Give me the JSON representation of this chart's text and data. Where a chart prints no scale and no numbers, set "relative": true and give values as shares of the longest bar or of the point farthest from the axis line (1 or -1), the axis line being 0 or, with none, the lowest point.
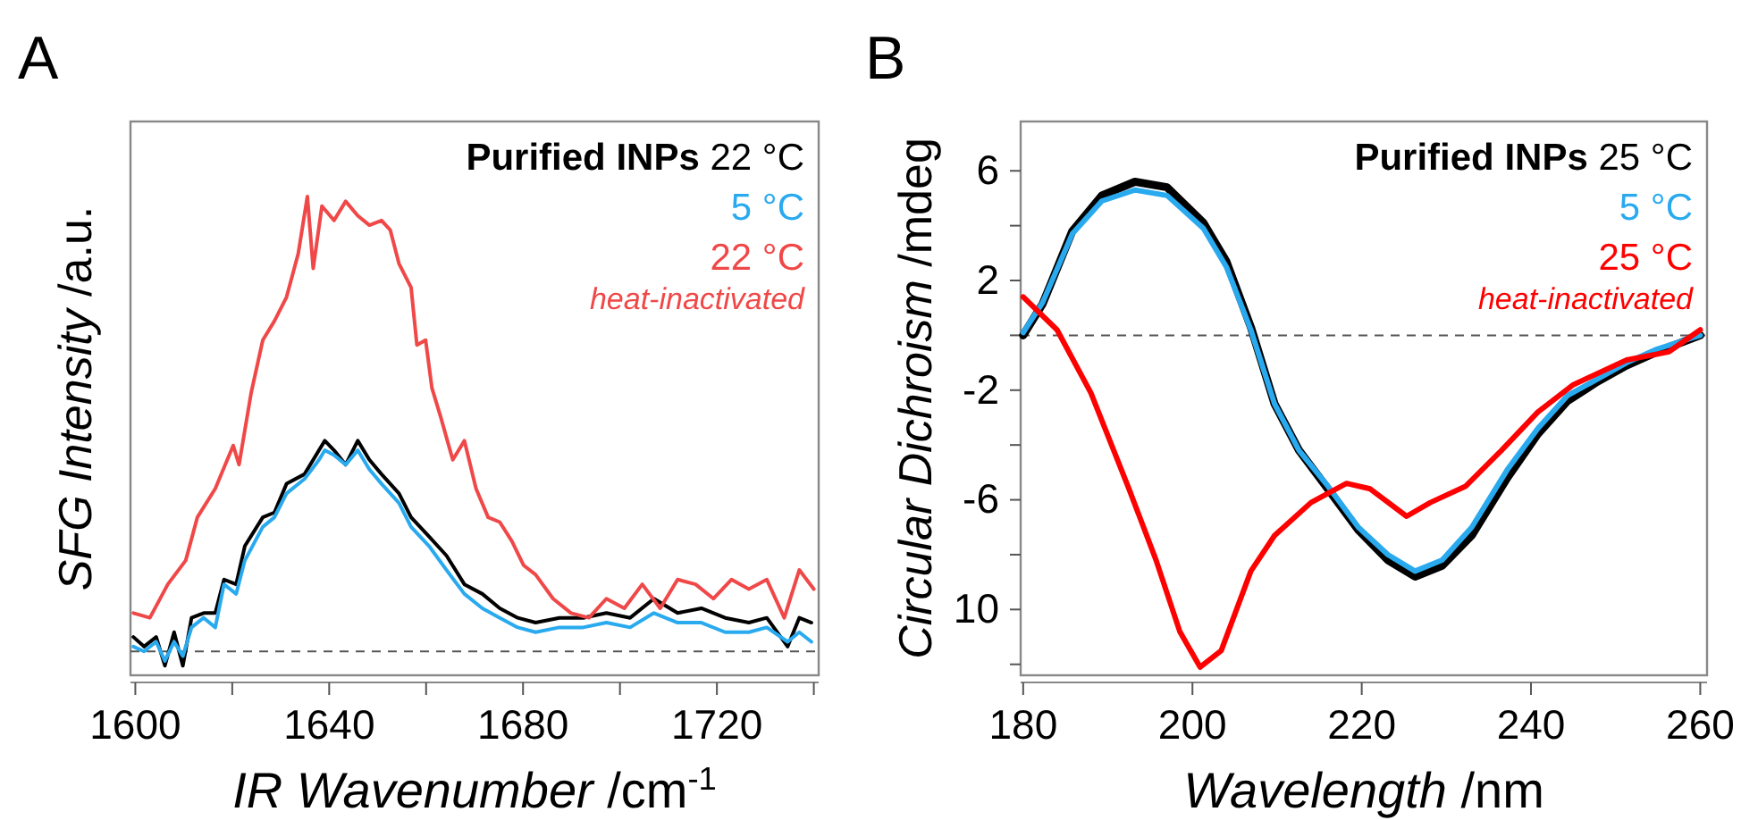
{
  "chart_data": [
    {
      "type": "line",
      "title": "A",
      "xlabel": "IR Wavenumber /cm$^{-1}$",
      "ylabel": "SFG Intensity /a.u.",
      "relative": true,
      "legend": "top right",
      "legend_title": "Purified INPs",
      "annotations": [
        "heat-inactivated"
      ],
      "xlim": [
        1599,
        1741
      ],
      "xticks": [
        1600,
        {
          "value": 1620,
          "label": null
        },
        1640,
        {
          "value": 1660,
          "label": null
        },
        1680,
        {
          "value": 1700,
          "label": null
        },
        1720,
        {
          "value": 1740,
          "label": null
        }
      ],
      "ref_lines": [
        {
          "axis": "y",
          "value": 0.05,
          "label": null,
          "color": "#555555",
          "line_style": "dashed"
        }
      ],
      "series": [
        {
          "name": "22 °C",
          "color": "#000000",
          "x": [
            1599.6,
            1601.8,
            1604.3,
            1606.1,
            1608,
            1609.8,
            1611.6,
            1614.1,
            1616.5,
            1618.3,
            1620.8,
            1622.6,
            1626.3,
            1628.7,
            1631.2,
            1634.9,
            1637.9,
            1639.1,
            1641,
            1643.4,
            1645.9,
            1648.3,
            1650.8,
            1654.4,
            1656.9,
            1660.6,
            1664.2,
            1667.9,
            1671.6,
            1675.2,
            1678.9,
            1682.6,
            1687.5,
            1692.4,
            1697.2,
            1702.1,
            1707,
            1711.9,
            1716.8,
            1721.7,
            1726.6,
            1730.3,
            1734.6,
            1737,
            1739.5
          ],
          "values": [
            0.08,
            0.06,
            0.08,
            0.02,
            0.09,
            0.02,
            0.12,
            0.13,
            0.13,
            0.2,
            0.19,
            0.27,
            0.33,
            0.34,
            0.4,
            0.42,
            0.47,
            0.49,
            0.47,
            0.44,
            0.49,
            0.45,
            0.42,
            0.38,
            0.33,
            0.29,
            0.25,
            0.19,
            0.17,
            0.14,
            0.12,
            0.11,
            0.12,
            0.12,
            0.13,
            0.12,
            0.16,
            0.13,
            0.14,
            0.12,
            0.11,
            0.12,
            0.06,
            0.12,
            0.11
          ]
        },
        {
          "name": "5 °C",
          "color": "#29aaef",
          "x": [
            1599.6,
            1601.8,
            1604.3,
            1606.1,
            1608,
            1609.8,
            1611.6,
            1614.1,
            1616.5,
            1618.3,
            1620.8,
            1622.6,
            1626.3,
            1628.7,
            1631.2,
            1634.9,
            1637.9,
            1639.1,
            1641,
            1643.4,
            1645.9,
            1648.3,
            1650.8,
            1654.4,
            1656.9,
            1660.6,
            1664.2,
            1667.9,
            1671.6,
            1675.2,
            1678.9,
            1682.6,
            1687.5,
            1692.4,
            1697.2,
            1702.1,
            1707,
            1711.9,
            1716.8,
            1721.7,
            1726.6,
            1730.3,
            1734.6,
            1737,
            1739.5
          ],
          "values": [
            0.06,
            0.05,
            0.07,
            0.03,
            0.07,
            0.04,
            0.1,
            0.12,
            0.1,
            0.19,
            0.17,
            0.24,
            0.31,
            0.33,
            0.38,
            0.41,
            0.45,
            0.47,
            0.46,
            0.44,
            0.47,
            0.43,
            0.4,
            0.36,
            0.31,
            0.27,
            0.22,
            0.17,
            0.14,
            0.12,
            0.1,
            0.09,
            0.1,
            0.1,
            0.11,
            0.1,
            0.13,
            0.11,
            0.11,
            0.09,
            0.09,
            0.1,
            0.07,
            0.09,
            0.07
          ]
        },
        {
          "name": "22 °C",
          "color": "#f04848",
          "x": [
            1599.6,
            1603,
            1606.7,
            1610.4,
            1612.8,
            1616.5,
            1620.2,
            1621.4,
            1623.9,
            1626.3,
            1628.7,
            1631.2,
            1633.6,
            1635.5,
            1636.7,
            1638.5,
            1641,
            1643.4,
            1645.9,
            1648.3,
            1650.8,
            1652.6,
            1654.4,
            1656.9,
            1658.1,
            1659.9,
            1661.2,
            1663,
            1665.5,
            1667.9,
            1670.3,
            1672.8,
            1675.2,
            1677.7,
            1680.1,
            1682.6,
            1686.2,
            1689.9,
            1693.6,
            1697.2,
            1700.9,
            1704.6,
            1708.3,
            1711.9,
            1715.6,
            1719.3,
            1723,
            1726.6,
            1730.3,
            1733.9,
            1737,
            1740
          ],
          "values": [
            0.13,
            0.12,
            0.19,
            0.24,
            0.33,
            0.39,
            0.48,
            0.44,
            0.59,
            0.7,
            0.74,
            0.79,
            0.88,
            1,
            0.85,
            0.98,
            0.95,
            0.99,
            0.96,
            0.94,
            0.95,
            0.93,
            0.86,
            0.81,
            0.69,
            0.7,
            0.6,
            0.54,
            0.45,
            0.49,
            0.39,
            0.33,
            0.32,
            0.28,
            0.23,
            0.21,
            0.16,
            0.13,
            0.12,
            0.16,
            0.14,
            0.19,
            0.14,
            0.2,
            0.19,
            0.16,
            0.2,
            0.18,
            0.2,
            0.12,
            0.22,
            0.18
          ]
        }
      ]
    },
    {
      "type": "line",
      "title": "B",
      "xlabel": "Wavelength /nm",
      "ylabel": "Circular Dichroism /mdeg",
      "legend": "top right",
      "legend_title": "Purified INPs",
      "annotations": [
        "heat-inactivated"
      ],
      "xlim": [
        179.7,
        260.8
      ],
      "xticks": [
        180,
        200,
        220,
        240,
        260
      ],
      "ylim": [
        -12.4,
        7.8
      ],
      "yticks": [
        6,
        {
          "value": 4,
          "label": null
        },
        2,
        {
          "value": 0,
          "label": null
        },
        -2,
        {
          "value": -4,
          "label": null
        },
        -6,
        {
          "value": -8,
          "label": null
        },
        {
          "value": -10,
          "label": "10"
        },
        {
          "value": -12,
          "label": null
        }
      ],
      "ref_lines": [
        {
          "axis": "y",
          "value": 0,
          "label": null,
          "color": "#555555",
          "line_style": "dashed"
        }
      ],
      "series": [
        {
          "name": "25 °C",
          "color": "#000000",
          "x": [
            180,
            182.3,
            185.8,
            189.3,
            193.2,
            197,
            201.3,
            204,
            206.9,
            209.7,
            212.6,
            216,
            219.6,
            223.1,
            226.3,
            229.5,
            233,
            237.2,
            240.8,
            244.3,
            247.8,
            251.3,
            254.9,
            260
          ],
          "values": [
            0,
            1.15,
            3.8,
            5.1,
            5.6,
            5.4,
            4.1,
            2.7,
            0.3,
            -2.5,
            -4.2,
            -5.6,
            -7.1,
            -8.2,
            -8.8,
            -8.4,
            -7.3,
            -5.2,
            -3.6,
            -2.4,
            -1.7,
            -1.1,
            -0.6,
            0
          ]
        },
        {
          "name": "5 °C",
          "color": "#29aaef",
          "x": [
            180,
            182.3,
            185.8,
            189.3,
            193.2,
            197,
            201.3,
            204,
            206.9,
            209.7,
            212.6,
            216,
            219.6,
            223.1,
            226.3,
            229.5,
            233,
            237.2,
            240.8,
            244.3,
            247.8,
            251.3,
            254.9,
            260
          ],
          "values": [
            0.1,
            1.2,
            3.7,
            4.9,
            5.3,
            5.1,
            3.9,
            2.5,
            0.2,
            -2.5,
            -4.2,
            -5.5,
            -7,
            -8,
            -8.6,
            -8.2,
            -7,
            -4.9,
            -3.4,
            -2.2,
            -1.6,
            -1,
            -0.5,
            0
          ]
        },
        {
          "name": "25 °C",
          "color": "#ff0000",
          "x": [
            180,
            184,
            188,
            192.5,
            195.7,
            198.5,
            200.9,
            203.4,
            206.9,
            209.7,
            214,
            218.2,
            221,
            225.3,
            228.1,
            232.3,
            236.5,
            240.8,
            245,
            251.3,
            256.3,
            260
          ],
          "values": [
            1.4,
            0.2,
            -2.1,
            -5.6,
            -8.2,
            -10.8,
            -12.1,
            -11.5,
            -8.6,
            -7.3,
            -6.1,
            -5.4,
            -5.6,
            -6.6,
            -6.1,
            -5.5,
            -4.2,
            -2.8,
            -1.8,
            -0.9,
            -0.6,
            0.2
          ]
        }
      ]
    }
  ]
}
